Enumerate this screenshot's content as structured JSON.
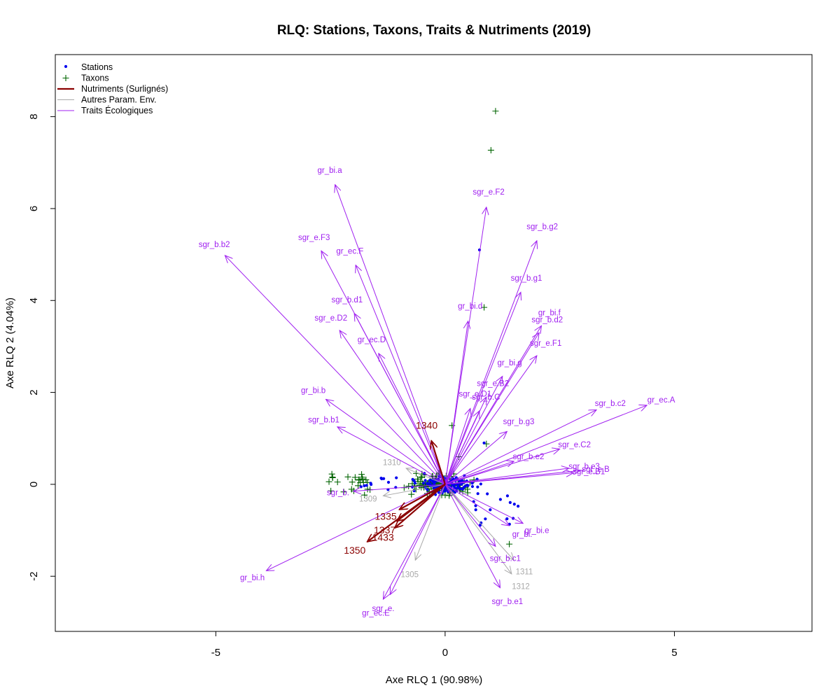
{
  "colors": {
    "stations": "#0000ee",
    "taxons": "#006400",
    "nutriments": "#8b0000",
    "env": "#a9a9a9",
    "traits": "#a020f0"
  },
  "chart_data": {
    "type": "scatter",
    "title": "RLQ: Stations, Taxons, Traits & Nutriments (2019)",
    "xlabel": "Axe RLQ 1 (90.98%)",
    "ylabel": "Axe RLQ 2 (4.04%)",
    "xlim": [
      -8.5,
      8.0
    ],
    "ylim": [
      -3.2,
      9.35
    ],
    "xticks": [
      -5,
      0,
      5
    ],
    "yticks": [
      -2,
      0,
      2,
      4,
      6,
      8
    ],
    "grid": false,
    "legend_position": "top-left",
    "legend": [
      {
        "label": "Stations",
        "kind": "point",
        "color": "#0000ee"
      },
      {
        "label": "Taxons",
        "kind": "plus",
        "color": "#006400"
      },
      {
        "label": "Nutriments (Surlignés)",
        "kind": "line-thick",
        "color": "#8b0000"
      },
      {
        "label": "Autres Param. Env.",
        "kind": "line",
        "color": "#a9a9a9"
      },
      {
        "label": "Traits Écologiques",
        "kind": "line",
        "color": "#a020f0"
      }
    ],
    "traits": [
      {
        "label": "gr_bi.a",
        "x": -2.4,
        "y": 6.52
      },
      {
        "label": "sgr_b.b2",
        "x": -4.8,
        "y": 4.98
      },
      {
        "label": "sgr_e.F3",
        "x": -2.7,
        "y": 5.08
      },
      {
        "label": "gr_ec.F",
        "x": -1.95,
        "y": 4.77
      },
      {
        "label": "sgr_b.d1",
        "x": -1.98,
        "y": 3.72
      },
      {
        "label": "sgr_e.D2",
        "x": -2.3,
        "y": 3.35
      },
      {
        "label": "gr_ec.D",
        "x": -1.45,
        "y": 2.85
      },
      {
        "label": "gr_bi.b",
        "x": -2.6,
        "y": 1.85
      },
      {
        "label": "sgr_b.b1",
        "x": -2.35,
        "y": 1.25
      },
      {
        "label": "sgr_e.F2",
        "x": 0.9,
        "y": 6.03
      },
      {
        "label": "sgr_b.g2",
        "x": 2.0,
        "y": 5.3
      },
      {
        "label": "sgr_b.g1",
        "x": 1.65,
        "y": 4.18
      },
      {
        "label": "gr_bi.d",
        "x": 0.5,
        "y": 3.55
      },
      {
        "label": "gr_bi.f",
        "x": 2.1,
        "y": 3.45
      },
      {
        "label": "sgr_b.d2",
        "x": 2.05,
        "y": 3.3
      },
      {
        "label": "sgr_e.F1",
        "x": 2.0,
        "y": 2.8
      },
      {
        "label": "gr_bi.g",
        "x": 1.25,
        "y": 2.35
      },
      {
        "label": "sgr_e.B2",
        "x": 0.9,
        "y": 1.9
      },
      {
        "label": "sgr_e.D1",
        "x": 0.55,
        "y": 1.65
      },
      {
        "label": "sgr_b.C",
        "x": 0.75,
        "y": 1.6
      },
      {
        "label": "sgr_b.g3",
        "x": 1.35,
        "y": 1.15
      },
      {
        "label": "sgr_b.c2",
        "x": 3.3,
        "y": 1.62
      },
      {
        "label": "gr_ec.A",
        "x": 4.4,
        "y": 1.72
      },
      {
        "label": "sgr_e.C2",
        "x": 2.5,
        "y": 0.77
      },
      {
        "label": "sgr_b.e2",
        "x": 1.5,
        "y": 0.5
      },
      {
        "label": "sgr_b.e3",
        "x": 2.7,
        "y": 0.35
      },
      {
        "label": "sgr_e.B",
        "x": 2.95,
        "y": 0.3
      },
      {
        "label": "sgr_e.B1",
        "x": 2.8,
        "y": 0.25
      },
      {
        "label": "sgr_b.",
        "x": -2.0,
        "y": -0.15
      },
      {
        "label": "gr_bi.h",
        "x": -3.9,
        "y": -1.88
      },
      {
        "label": "gr_bi.e",
        "x": 1.7,
        "y": -0.85
      },
      {
        "label": "gr_bi.",
        "x": 1.4,
        "y": -0.9
      },
      {
        "label": "sgr_b.c1",
        "x": 1.1,
        "y": -1.35
      },
      {
        "label": "sgr_b.e1",
        "x": 1.2,
        "y": -2.25
      },
      {
        "label": "sgr_e.",
        "x": -1.2,
        "y": -2.4
      },
      {
        "label": "gr_ec.E",
        "x": -1.35,
        "y": -2.5
      }
    ],
    "nutriments": [
      {
        "label": "1340",
        "x": -0.3,
        "y": 0.95
      },
      {
        "label": "1335",
        "x": -1.0,
        "y": -0.55
      },
      {
        "label": "1337",
        "x": -1.05,
        "y": -0.8
      },
      {
        "label": "1433",
        "x": -1.1,
        "y": -0.95
      },
      {
        "label": "1350",
        "x": -1.7,
        "y": -1.25
      }
    ],
    "env": [
      {
        "label": "1311",
        "x": 1.5,
        "y": -1.65
      },
      {
        "label": "1312",
        "x": 1.45,
        "y": -1.95
      },
      {
        "label": "1305",
        "x": -0.65,
        "y": -1.65
      },
      {
        "label": "1309",
        "x": -1.35,
        "y": -0.25
      },
      {
        "label": "1310",
        "x": -0.85,
        "y": 0.35
      }
    ]
  }
}
